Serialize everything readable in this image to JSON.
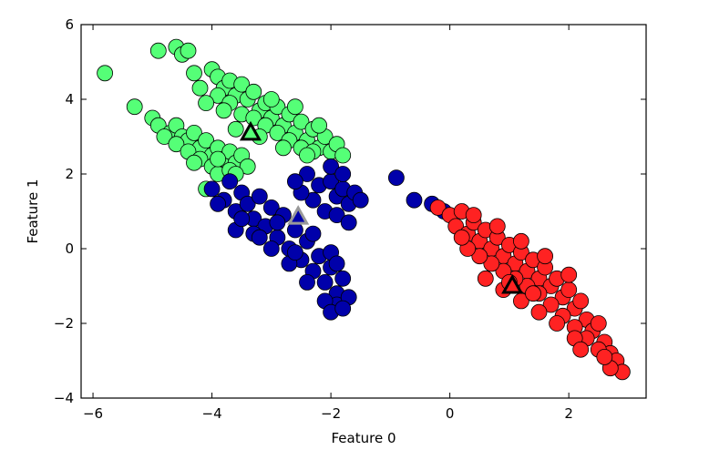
{
  "chart_data": {
    "type": "scatter",
    "title": "",
    "xlabel": "Feature 0",
    "ylabel": "Feature 1",
    "xlim": [
      -6.2,
      3.3
    ],
    "ylim": [
      -4,
      6
    ],
    "x_ticks": [
      -6,
      -4,
      -2,
      0,
      2
    ],
    "x_tick_labels": [
      "−6",
      "−4",
      "−2",
      "0",
      "2"
    ],
    "y_ticks": [
      -4,
      -2,
      0,
      2,
      4,
      6
    ],
    "y_tick_labels": [
      "−4",
      "−2",
      "0",
      "2",
      "4",
      "6"
    ],
    "grid": false,
    "legend": "none",
    "series": [
      {
        "color": "#55ff77",
        "marker": "circle",
        "points": [
          [
            -5.8,
            4.7
          ],
          [
            -4.9,
            5.3
          ],
          [
            -4.6,
            5.4
          ],
          [
            -4.5,
            5.2
          ],
          [
            -4.4,
            5.3
          ],
          [
            -4.3,
            4.7
          ],
          [
            -4.0,
            4.8
          ],
          [
            -3.9,
            4.6
          ],
          [
            -3.8,
            4.3
          ],
          [
            -3.7,
            4.5
          ],
          [
            -3.6,
            4.1
          ],
          [
            -3.5,
            4.4
          ],
          [
            -3.4,
            4.0
          ],
          [
            -3.3,
            4.2
          ],
          [
            -3.2,
            3.7
          ],
          [
            -3.1,
            3.9
          ],
          [
            -3.0,
            3.5
          ],
          [
            -2.9,
            3.8
          ],
          [
            -2.8,
            3.3
          ],
          [
            -2.7,
            3.6
          ],
          [
            -2.6,
            3.1
          ],
          [
            -2.5,
            3.4
          ],
          [
            -2.4,
            2.9
          ],
          [
            -2.3,
            3.2
          ],
          [
            -2.2,
            2.7
          ],
          [
            -2.1,
            3.0
          ],
          [
            -2.0,
            2.6
          ],
          [
            -1.9,
            2.8
          ],
          [
            -1.8,
            2.5
          ],
          [
            -3.9,
            4.1
          ],
          [
            -3.7,
            3.9
          ],
          [
            -3.5,
            3.6
          ],
          [
            -3.3,
            3.5
          ],
          [
            -3.1,
            3.3
          ],
          [
            -2.9,
            3.1
          ],
          [
            -2.7,
            2.9
          ],
          [
            -2.5,
            2.7
          ],
          [
            -2.3,
            2.6
          ],
          [
            -3.6,
            3.2
          ],
          [
            -3.2,
            3.0
          ],
          [
            -2.8,
            2.7
          ],
          [
            -2.4,
            2.5
          ],
          [
            -4.2,
            4.3
          ],
          [
            -4.1,
            3.9
          ],
          [
            -3.8,
            3.7
          ],
          [
            -3.0,
            4.0
          ],
          [
            -2.6,
            3.8
          ],
          [
            -2.2,
            3.3
          ],
          [
            -5.3,
            3.8
          ],
          [
            -5.0,
            3.5
          ],
          [
            -4.9,
            3.3
          ],
          [
            -4.7,
            3.1
          ],
          [
            -4.6,
            3.3
          ],
          [
            -4.5,
            3.0
          ],
          [
            -4.4,
            2.9
          ],
          [
            -4.3,
            3.1
          ],
          [
            -4.2,
            2.7
          ],
          [
            -4.1,
            2.9
          ],
          [
            -4.0,
            2.5
          ],
          [
            -3.9,
            2.7
          ],
          [
            -3.8,
            2.4
          ],
          [
            -3.7,
            2.6
          ],
          [
            -3.6,
            2.3
          ],
          [
            -3.5,
            2.5
          ],
          [
            -3.4,
            2.2
          ],
          [
            -4.8,
            3.0
          ],
          [
            -4.6,
            2.8
          ],
          [
            -4.4,
            2.6
          ],
          [
            -4.2,
            2.4
          ],
          [
            -4.0,
            2.2
          ],
          [
            -3.9,
            2.0
          ],
          [
            -3.7,
            2.1
          ],
          [
            -4.3,
            2.3
          ],
          [
            -4.1,
            1.6
          ],
          [
            -3.9,
            2.4
          ],
          [
            -3.6,
            2.0
          ]
        ]
      },
      {
        "color": "#0000aa",
        "marker": "circle",
        "points": [
          [
            -4.0,
            1.6
          ],
          [
            -3.8,
            1.3
          ],
          [
            -3.7,
            1.8
          ],
          [
            -3.6,
            1.0
          ],
          [
            -3.5,
            1.5
          ],
          [
            -3.4,
            1.2
          ],
          [
            -3.3,
            0.8
          ],
          [
            -3.2,
            1.4
          ],
          [
            -3.1,
            0.6
          ],
          [
            -3.0,
            1.1
          ],
          [
            -2.9,
            0.3
          ],
          [
            -2.8,
            0.9
          ],
          [
            -2.7,
            0.0
          ],
          [
            -2.6,
            0.5
          ],
          [
            -2.5,
            -0.3
          ],
          [
            -2.4,
            0.2
          ],
          [
            -2.3,
            -0.6
          ],
          [
            -2.2,
            -0.2
          ],
          [
            -2.1,
            -0.9
          ],
          [
            -2.0,
            -0.5
          ],
          [
            -1.9,
            -1.2
          ],
          [
            -1.8,
            -0.8
          ],
          [
            -1.9,
            -1.5
          ],
          [
            -1.7,
            -1.3
          ],
          [
            -3.6,
            0.5
          ],
          [
            -3.3,
            0.4
          ],
          [
            -3.0,
            0.0
          ],
          [
            -2.7,
            -0.4
          ],
          [
            -2.4,
            -0.9
          ],
          [
            -2.1,
            -1.4
          ],
          [
            -2.0,
            -1.7
          ],
          [
            -1.8,
            -1.6
          ],
          [
            -3.9,
            1.2
          ],
          [
            -3.5,
            0.8
          ],
          [
            -3.2,
            0.3
          ],
          [
            -2.9,
            0.7
          ],
          [
            -2.6,
            -0.1
          ],
          [
            -2.3,
            0.4
          ],
          [
            -2.0,
            -0.1
          ],
          [
            -1.9,
            -0.4
          ],
          [
            -2.4,
            2.0
          ],
          [
            -2.2,
            1.7
          ],
          [
            -2.0,
            1.8
          ],
          [
            -1.9,
            1.4
          ],
          [
            -1.8,
            1.6
          ],
          [
            -1.7,
            1.2
          ],
          [
            -1.6,
            1.5
          ],
          [
            -1.5,
            1.3
          ],
          [
            -2.3,
            1.3
          ],
          [
            -2.1,
            1.0
          ],
          [
            -1.9,
            0.9
          ],
          [
            -1.7,
            0.7
          ],
          [
            -2.5,
            1.5
          ],
          [
            -2.6,
            1.8
          ],
          [
            -2.0,
            2.2
          ],
          [
            -1.8,
            2.0
          ],
          [
            -0.9,
            1.9
          ],
          [
            -0.6,
            1.3
          ],
          [
            -0.3,
            1.2
          ],
          [
            -0.1,
            1.0
          ]
        ]
      },
      {
        "color": "#ff2222",
        "marker": "circle",
        "points": [
          [
            -0.2,
            1.1
          ],
          [
            0.0,
            0.9
          ],
          [
            0.1,
            0.6
          ],
          [
            0.2,
            1.0
          ],
          [
            0.3,
            0.4
          ],
          [
            0.4,
            0.7
          ],
          [
            0.5,
            0.2
          ],
          [
            0.6,
            0.5
          ],
          [
            0.7,
            0.0
          ],
          [
            0.8,
            0.3
          ],
          [
            0.9,
            -0.2
          ],
          [
            1.0,
            0.1
          ],
          [
            1.1,
            -0.4
          ],
          [
            1.2,
            -0.1
          ],
          [
            1.3,
            -0.6
          ],
          [
            1.4,
            -0.3
          ],
          [
            1.5,
            -0.8
          ],
          [
            1.6,
            -0.5
          ],
          [
            1.7,
            -1.0
          ],
          [
            1.8,
            -0.8
          ],
          [
            1.9,
            -1.3
          ],
          [
            2.0,
            -1.1
          ],
          [
            2.1,
            -1.6
          ],
          [
            2.2,
            -1.4
          ],
          [
            2.3,
            -1.9
          ],
          [
            2.4,
            -2.2
          ],
          [
            2.5,
            -2.0
          ],
          [
            2.6,
            -2.5
          ],
          [
            2.7,
            -2.8
          ],
          [
            2.8,
            -3.0
          ],
          [
            2.9,
            -3.3
          ],
          [
            2.7,
            -3.2
          ],
          [
            2.5,
            -2.7
          ],
          [
            2.3,
            -2.4
          ],
          [
            2.1,
            -2.1
          ],
          [
            1.9,
            -1.8
          ],
          [
            1.7,
            -1.5
          ],
          [
            1.5,
            -1.2
          ],
          [
            1.3,
            -1.0
          ],
          [
            1.1,
            -0.8
          ],
          [
            0.9,
            -0.6
          ],
          [
            0.7,
            -0.4
          ],
          [
            0.5,
            -0.2
          ],
          [
            0.3,
            0.0
          ],
          [
            0.6,
            -0.8
          ],
          [
            0.9,
            -1.1
          ],
          [
            1.2,
            -1.4
          ],
          [
            1.5,
            -1.7
          ],
          [
            1.8,
            -2.0
          ],
          [
            2.1,
            -2.4
          ],
          [
            0.4,
            0.9
          ],
          [
            0.8,
            0.6
          ],
          [
            1.2,
            0.2
          ],
          [
            1.6,
            -0.2
          ],
          [
            2.0,
            -0.7
          ],
          [
            1.0,
            -0.9
          ],
          [
            1.4,
            -1.2
          ],
          [
            2.2,
            -2.7
          ],
          [
            2.6,
            -2.9
          ],
          [
            0.2,
            0.3
          ]
        ]
      }
    ],
    "centers": [
      {
        "x": -3.35,
        "y": 3.1,
        "fill": "#55ff77",
        "stroke": "#000000"
      },
      {
        "x": -2.55,
        "y": 0.85,
        "fill": "#0000aa",
        "stroke": "#999999"
      },
      {
        "x": 1.05,
        "y": -1.0,
        "fill": "#ff2222",
        "stroke": "#000000"
      }
    ]
  }
}
